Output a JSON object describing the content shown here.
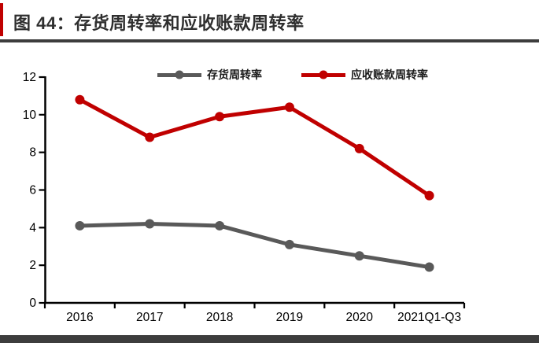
{
  "figure": {
    "title": "图 44：存货周转率和应收账款周转率"
  },
  "colors": {
    "accent_red": "#C00000",
    "series_gray": "#595959",
    "divider_dark": "#3D3D3D",
    "axis": "#000000"
  },
  "chart_data": {
    "type": "line",
    "categories": [
      "2016",
      "2017",
      "2018",
      "2019",
      "2020",
      "2021Q1-Q3"
    ],
    "series": [
      {
        "name": "存货周转率",
        "color": "#595959",
        "values": [
          4.1,
          4.2,
          4.1,
          3.1,
          2.5,
          1.9
        ]
      },
      {
        "name": "应收账款周转率",
        "color": "#C00000",
        "values": [
          10.8,
          8.8,
          9.9,
          10.4,
          8.2,
          5.7
        ]
      }
    ],
    "title": "",
    "xlabel": "",
    "ylabel": "",
    "ylim": [
      0,
      12
    ],
    "yticks": [
      0,
      2,
      4,
      6,
      8,
      10,
      12
    ],
    "grid": false,
    "marker": "circle",
    "legend_position": "top"
  }
}
